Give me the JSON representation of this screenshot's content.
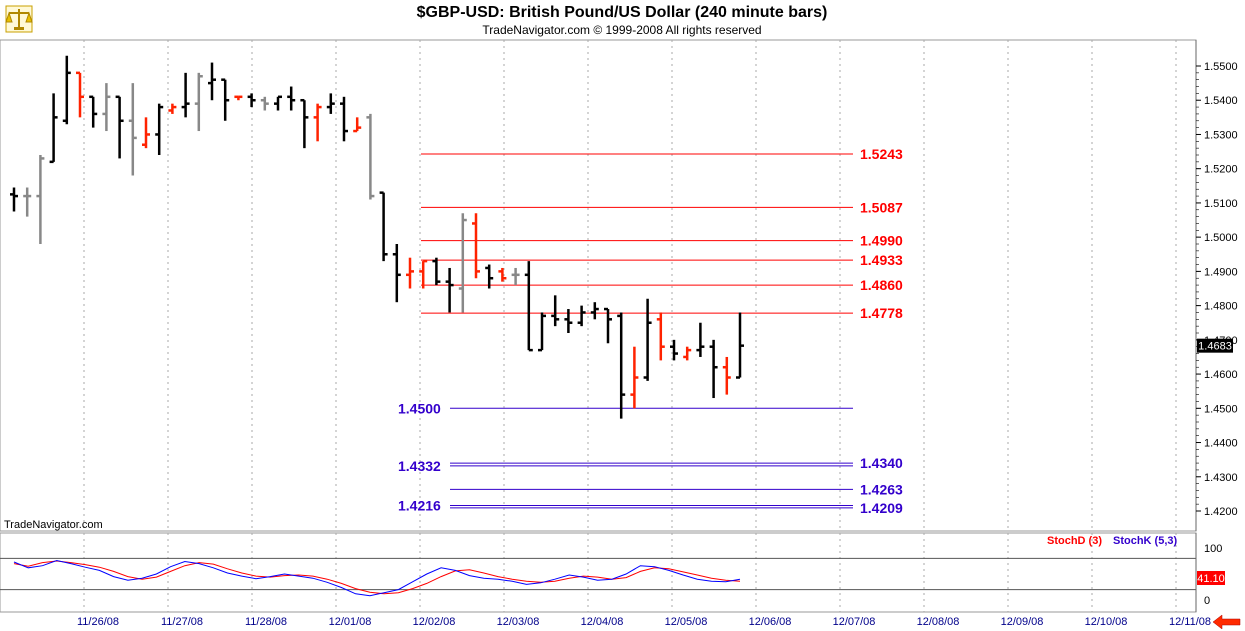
{
  "header": {
    "title": "$GBP-USD:  British Pound/US Dollar  (240 minute bars)",
    "subtitle": "TradeNavigator.com © 1999-2008 All rights reserved"
  },
  "watermark": "TradeNavigator.com",
  "icons": {
    "logo": "scales-icon",
    "scroll": "left-arrow-icon"
  },
  "chart_data": {
    "type": "ohlc",
    "price_axis": {
      "min": 1.415,
      "max": 1.5575,
      "ticks": [
        "1.5500",
        "1.5400",
        "1.5300",
        "1.5200",
        "1.5100",
        "1.5000",
        "1.4900",
        "1.4800",
        "1.4700",
        "1.4600",
        "1.4500",
        "1.4400",
        "1.4300",
        "1.4200"
      ]
    },
    "last_price": "1.4683",
    "x_axis": {
      "labels": [
        "11/26/08",
        "11/27/08",
        "11/28/08",
        "12/01/08",
        "12/02/08",
        "12/03/08",
        "12/04/08",
        "12/05/08",
        "12/06/08",
        "12/07/08",
        "12/08/08",
        "12/09/08",
        "12/10/08",
        "12/11/08"
      ]
    },
    "bars": [
      {
        "i": 0,
        "o": 1.5125,
        "h": 1.5145,
        "l": 1.5075,
        "c": 1.512,
        "col": "black"
      },
      {
        "i": 1,
        "o": 1.512,
        "h": 1.5145,
        "l": 1.506,
        "c": 1.512,
        "col": "gray"
      },
      {
        "i": 2,
        "o": 1.512,
        "h": 1.524,
        "l": 1.498,
        "c": 1.523,
        "col": "gray"
      },
      {
        "i": 3,
        "o": 1.522,
        "h": 1.542,
        "l": 1.522,
        "c": 1.535,
        "col": "black"
      },
      {
        "i": 4,
        "o": 1.534,
        "h": 1.553,
        "l": 1.533,
        "c": 1.548,
        "col": "black"
      },
      {
        "i": 5,
        "o": 1.548,
        "h": 1.548,
        "l": 1.535,
        "c": 1.541,
        "col": "red"
      },
      {
        "i": 6,
        "o": 1.541,
        "h": 1.541,
        "l": 1.532,
        "c": 1.536,
        "col": "black"
      },
      {
        "i": 7,
        "o": 1.536,
        "h": 1.545,
        "l": 1.531,
        "c": 1.541,
        "col": "gray"
      },
      {
        "i": 8,
        "o": 1.541,
        "h": 1.541,
        "l": 1.523,
        "c": 1.534,
        "col": "black"
      },
      {
        "i": 9,
        "o": 1.534,
        "h": 1.545,
        "l": 1.518,
        "c": 1.529,
        "col": "gray"
      },
      {
        "i": 10,
        "o": 1.527,
        "h": 1.535,
        "l": 1.526,
        "c": 1.53,
        "col": "red"
      },
      {
        "i": 11,
        "o": 1.53,
        "h": 1.539,
        "l": 1.524,
        "c": 1.538,
        "col": "black"
      },
      {
        "i": 12,
        "o": 1.537,
        "h": 1.539,
        "l": 1.536,
        "c": 1.538,
        "col": "red"
      },
      {
        "i": 13,
        "o": 1.538,
        "h": 1.548,
        "l": 1.535,
        "c": 1.539,
        "col": "black"
      },
      {
        "i": 14,
        "o": 1.539,
        "h": 1.548,
        "l": 1.531,
        "c": 1.547,
        "col": "gray"
      },
      {
        "i": 15,
        "o": 1.545,
        "h": 1.551,
        "l": 1.54,
        "c": 1.546,
        "col": "black"
      },
      {
        "i": 16,
        "o": 1.546,
        "h": 1.546,
        "l": 1.534,
        "c": 1.54,
        "col": "black"
      },
      {
        "i": 17,
        "o": 1.541,
        "h": 1.541,
        "l": 1.54,
        "c": 1.541,
        "col": "red"
      },
      {
        "i": 18,
        "o": 1.541,
        "h": 1.542,
        "l": 1.538,
        "c": 1.54,
        "col": "black"
      },
      {
        "i": 19,
        "o": 1.54,
        "h": 1.541,
        "l": 1.537,
        "c": 1.539,
        "col": "gray"
      },
      {
        "i": 20,
        "o": 1.539,
        "h": 1.541,
        "l": 1.537,
        "c": 1.541,
        "col": "black"
      },
      {
        "i": 21,
        "o": 1.541,
        "h": 1.544,
        "l": 1.537,
        "c": 1.54,
        "col": "black"
      },
      {
        "i": 22,
        "o": 1.54,
        "h": 1.54,
        "l": 1.526,
        "c": 1.535,
        "col": "black"
      },
      {
        "i": 23,
        "o": 1.535,
        "h": 1.539,
        "l": 1.528,
        "c": 1.538,
        "col": "red"
      },
      {
        "i": 24,
        "o": 1.538,
        "h": 1.542,
        "l": 1.536,
        "c": 1.539,
        "col": "black"
      },
      {
        "i": 25,
        "o": 1.539,
        "h": 1.541,
        "l": 1.528,
        "c": 1.531,
        "col": "black"
      },
      {
        "i": 26,
        "o": 1.531,
        "h": 1.535,
        "l": 1.531,
        "c": 1.532,
        "col": "red"
      },
      {
        "i": 27,
        "o": 1.535,
        "h": 1.536,
        "l": 1.511,
        "c": 1.512,
        "col": "gray"
      },
      {
        "i": 28,
        "o": 1.513,
        "h": 1.513,
        "l": 1.493,
        "c": 1.495,
        "col": "black"
      },
      {
        "i": 29,
        "o": 1.495,
        "h": 1.498,
        "l": 1.481,
        "c": 1.489,
        "col": "black"
      },
      {
        "i": 30,
        "o": 1.489,
        "h": 1.494,
        "l": 1.485,
        "c": 1.49,
        "col": "red"
      },
      {
        "i": 31,
        "o": 1.49,
        "h": 1.493,
        "l": 1.485,
        "c": 1.493,
        "col": "red"
      },
      {
        "i": 32,
        "o": 1.493,
        "h": 1.494,
        "l": 1.486,
        "c": 1.487,
        "col": "black"
      },
      {
        "i": 33,
        "o": 1.487,
        "h": 1.491,
        "l": 1.478,
        "c": 1.486,
        "col": "black"
      },
      {
        "i": 34,
        "o": 1.485,
        "h": 1.507,
        "l": 1.478,
        "c": 1.505,
        "col": "gray"
      },
      {
        "i": 35,
        "o": 1.504,
        "h": 1.507,
        "l": 1.488,
        "c": 1.49,
        "col": "red"
      },
      {
        "i": 36,
        "o": 1.491,
        "h": 1.492,
        "l": 1.485,
        "c": 1.488,
        "col": "black"
      },
      {
        "i": 37,
        "o": 1.49,
        "h": 1.491,
        "l": 1.487,
        "c": 1.488,
        "col": "red"
      },
      {
        "i": 38,
        "o": 1.489,
        "h": 1.491,
        "l": 1.486,
        "c": 1.489,
        "col": "gray"
      },
      {
        "i": 39,
        "o": 1.489,
        "h": 1.493,
        "l": 1.467,
        "c": 1.467,
        "col": "black"
      },
      {
        "i": 40,
        "o": 1.467,
        "h": 1.478,
        "l": 1.467,
        "c": 1.477,
        "col": "black"
      },
      {
        "i": 41,
        "o": 1.477,
        "h": 1.483,
        "l": 1.474,
        "c": 1.476,
        "col": "black"
      },
      {
        "i": 42,
        "o": 1.476,
        "h": 1.479,
        "l": 1.472,
        "c": 1.475,
        "col": "black"
      },
      {
        "i": 43,
        "o": 1.475,
        "h": 1.48,
        "l": 1.474,
        "c": 1.478,
        "col": "black"
      },
      {
        "i": 44,
        "o": 1.478,
        "h": 1.481,
        "l": 1.476,
        "c": 1.479,
        "col": "black"
      },
      {
        "i": 45,
        "o": 1.479,
        "h": 1.479,
        "l": 1.469,
        "c": 1.476,
        "col": "black"
      },
      {
        "i": 46,
        "o": 1.477,
        "h": 1.478,
        "l": 1.447,
        "c": 1.454,
        "col": "black"
      },
      {
        "i": 47,
        "o": 1.454,
        "h": 1.468,
        "l": 1.45,
        "c": 1.459,
        "col": "red"
      },
      {
        "i": 48,
        "o": 1.459,
        "h": 1.482,
        "l": 1.458,
        "c": 1.475,
        "col": "black"
      },
      {
        "i": 49,
        "o": 1.476,
        "h": 1.478,
        "l": 1.464,
        "c": 1.468,
        "col": "red"
      },
      {
        "i": 50,
        "o": 1.468,
        "h": 1.47,
        "l": 1.464,
        "c": 1.466,
        "col": "black"
      },
      {
        "i": 51,
        "o": 1.465,
        "h": 1.468,
        "l": 1.464,
        "c": 1.467,
        "col": "red"
      },
      {
        "i": 52,
        "o": 1.467,
        "h": 1.475,
        "l": 1.465,
        "c": 1.468,
        "col": "black"
      },
      {
        "i": 53,
        "o": 1.468,
        "h": 1.47,
        "l": 1.453,
        "c": 1.462,
        "col": "black"
      },
      {
        "i": 54,
        "o": 1.462,
        "h": 1.465,
        "l": 1.454,
        "c": 1.459,
        "col": "red"
      },
      {
        "i": 55,
        "o": 1.459,
        "h": 1.478,
        "l": 1.459,
        "c": 1.4683,
        "col": "black"
      }
    ],
    "levels": [
      {
        "value": "1.5243",
        "color": "#ff0000",
        "label_side": "right"
      },
      {
        "value": "1.5087",
        "color": "#ff0000",
        "label_side": "right"
      },
      {
        "value": "1.4990",
        "color": "#ff0000",
        "label_side": "right"
      },
      {
        "value": "1.4933",
        "color": "#ff0000",
        "label_side": "right"
      },
      {
        "value": "1.4860",
        "color": "#ff0000",
        "label_side": "right"
      },
      {
        "value": "1.4778",
        "color": "#ff0000",
        "label_side": "right"
      },
      {
        "value": "1.4500",
        "color": "#3300cc",
        "label_side": "left"
      },
      {
        "value": "1.4340",
        "color": "#3300cc",
        "label_side": "right"
      },
      {
        "value": "1.4332",
        "color": "#3300cc",
        "label_side": "left"
      },
      {
        "value": "1.4263",
        "color": "#3300cc",
        "label_side": "right"
      },
      {
        "value": "1.4216",
        "color": "#3300cc",
        "label_side": "left"
      },
      {
        "value": "1.4209",
        "color": "#3300cc",
        "label_side": "right"
      }
    ],
    "stochastic": {
      "axis": {
        "min": 0,
        "max": 100,
        "ticks": [
          "100",
          "0"
        ],
        "bands": [
          80,
          20
        ]
      },
      "last_value": "41.10",
      "series": [
        {
          "name": "StochD (3)",
          "color": "#ff0000",
          "values": [
            70,
            65,
            72,
            75,
            72,
            68,
            63,
            55,
            45,
            40,
            44,
            55,
            66,
            72,
            69,
            60,
            52,
            46,
            44,
            47,
            48,
            46,
            40,
            32,
            22,
            15,
            12,
            14,
            22,
            32,
            45,
            56,
            58,
            52,
            45,
            40,
            36,
            34,
            36,
            42,
            46,
            44,
            40,
            43,
            55,
            62,
            60,
            54,
            48,
            42,
            38,
            36
          ]
        },
        {
          "name": "StochK (5,3)",
          "color": "#0000ff",
          "values": [
            73,
            62,
            66,
            76,
            70,
            63,
            57,
            45,
            38,
            42,
            50,
            64,
            74,
            70,
            62,
            52,
            46,
            41,
            45,
            50,
            46,
            42,
            34,
            24,
            12,
            8,
            14,
            20,
            35,
            50,
            62,
            57,
            47,
            42,
            40,
            36,
            30,
            33,
            40,
            48,
            44,
            38,
            40,
            50,
            66,
            64,
            57,
            48,
            40,
            36,
            35,
            40
          ]
        }
      ]
    }
  }
}
